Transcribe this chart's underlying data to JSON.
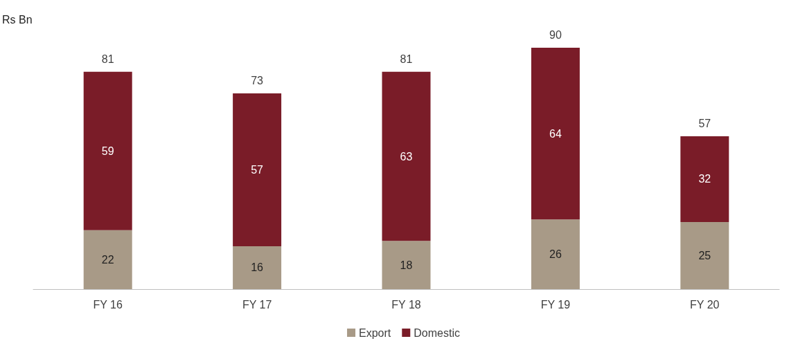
{
  "chart_data": {
    "type": "bar",
    "ylabel": "Rs Bn",
    "categories": [
      "FY 16",
      "FY 17",
      "FY 18",
      "FY 19",
      "FY 20"
    ],
    "stacked": true,
    "data_labels": true,
    "legend": "bottom",
    "grid": false,
    "series": [
      {
        "name": "Export",
        "color": "#a89a87",
        "values": [
          22,
          16,
          18,
          26,
          25
        ]
      },
      {
        "name": "Domestic",
        "color": "#7a1c28",
        "values": [
          59,
          57,
          63,
          64,
          32
        ]
      }
    ],
    "totals": [
      "81",
      "73",
      "81",
      "90",
      "57"
    ]
  }
}
